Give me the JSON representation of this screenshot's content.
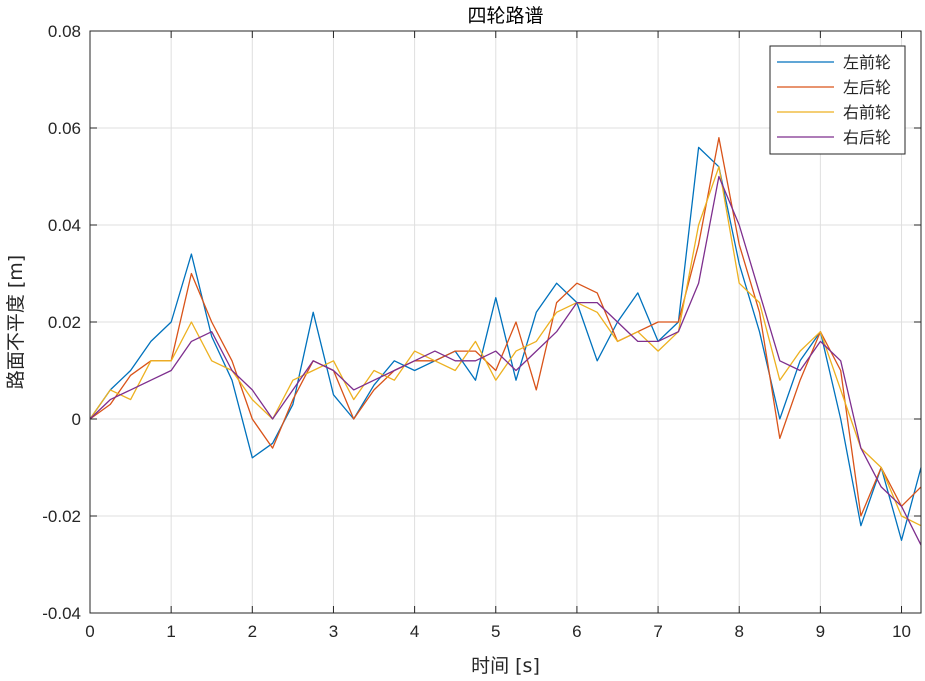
{
  "chart_data": {
    "type": "line",
    "title": "四轮路谱",
    "xlabel": "时间 [s]",
    "ylabel": "路面不平度 [m]",
    "xlim": [
      0,
      10.24
    ],
    "ylim": [
      -0.04,
      0.08
    ],
    "xticks": [
      0,
      1,
      2,
      3,
      4,
      5,
      6,
      7,
      8,
      9,
      10
    ],
    "xtick_labels": [
      "0",
      "1",
      "2",
      "3",
      "4",
      "5",
      "6",
      "7",
      "8",
      "9",
      "10"
    ],
    "yticks": [
      -0.04,
      -0.02,
      0,
      0.02,
      0.04,
      0.06,
      0.08
    ],
    "ytick_labels": [
      "-0.04",
      "-0.02",
      "0",
      "0.02",
      "0.04",
      "0.06",
      "0.08"
    ],
    "grid": true,
    "legend_position": "top-right",
    "x": [
      0,
      0.25,
      0.5,
      0.75,
      1.0,
      1.25,
      1.5,
      1.75,
      2.0,
      2.25,
      2.5,
      2.75,
      3.0,
      3.25,
      3.5,
      3.75,
      4.0,
      4.25,
      4.5,
      4.75,
      5.0,
      5.25,
      5.5,
      5.75,
      6.0,
      6.25,
      6.5,
      6.75,
      7.0,
      7.25,
      7.5,
      7.75,
      8.0,
      8.25,
      8.5,
      8.75,
      9.0,
      9.25,
      9.5,
      9.75,
      10.0,
      10.24
    ],
    "series": [
      {
        "name": "左前轮",
        "color": "#0072BD",
        "values": [
          0.0,
          0.006,
          0.01,
          0.016,
          0.02,
          0.034,
          0.017,
          0.008,
          -0.008,
          -0.005,
          0.003,
          0.022,
          0.005,
          0.0,
          0.007,
          0.012,
          0.01,
          0.012,
          0.014,
          0.008,
          0.025,
          0.008,
          0.022,
          0.028,
          0.024,
          0.012,
          0.02,
          0.026,
          0.016,
          0.02,
          0.056,
          0.052,
          0.032,
          0.018,
          0.0,
          0.012,
          0.018,
          0.0,
          -0.022,
          -0.01,
          -0.025,
          -0.01
        ]
      },
      {
        "name": "左后轮",
        "color": "#D95319",
        "values": [
          0.0,
          0.003,
          0.009,
          0.012,
          0.012,
          0.03,
          0.02,
          0.012,
          0.0,
          -0.006,
          0.004,
          0.012,
          0.01,
          0.0,
          0.006,
          0.01,
          0.012,
          0.012,
          0.014,
          0.014,
          0.01,
          0.02,
          0.006,
          0.024,
          0.028,
          0.026,
          0.016,
          0.018,
          0.02,
          0.02,
          0.036,
          0.058,
          0.036,
          0.022,
          -0.004,
          0.008,
          0.018,
          0.01,
          -0.02,
          -0.01,
          -0.018,
          -0.014
        ]
      },
      {
        "name": "右前轮",
        "color": "#EDB120",
        "values": [
          0.0,
          0.006,
          0.004,
          0.012,
          0.012,
          0.02,
          0.012,
          0.01,
          0.004,
          0.0,
          0.008,
          0.01,
          0.012,
          0.004,
          0.01,
          0.008,
          0.014,
          0.012,
          0.01,
          0.016,
          0.008,
          0.014,
          0.016,
          0.022,
          0.024,
          0.022,
          0.016,
          0.018,
          0.014,
          0.018,
          0.04,
          0.052,
          0.028,
          0.024,
          0.008,
          0.014,
          0.018,
          0.006,
          -0.006,
          -0.01,
          -0.02,
          -0.022
        ]
      },
      {
        "name": "右后轮",
        "color": "#7E2F8E",
        "values": [
          0.0,
          0.004,
          0.006,
          0.008,
          0.01,
          0.016,
          0.018,
          0.01,
          0.006,
          0.0,
          0.006,
          0.012,
          0.01,
          0.006,
          0.008,
          0.01,
          0.012,
          0.014,
          0.012,
          0.012,
          0.014,
          0.01,
          0.014,
          0.018,
          0.024,
          0.024,
          0.02,
          0.016,
          0.016,
          0.018,
          0.028,
          0.05,
          0.04,
          0.026,
          0.012,
          0.01,
          0.016,
          0.012,
          -0.006,
          -0.014,
          -0.018,
          -0.026
        ]
      }
    ]
  }
}
